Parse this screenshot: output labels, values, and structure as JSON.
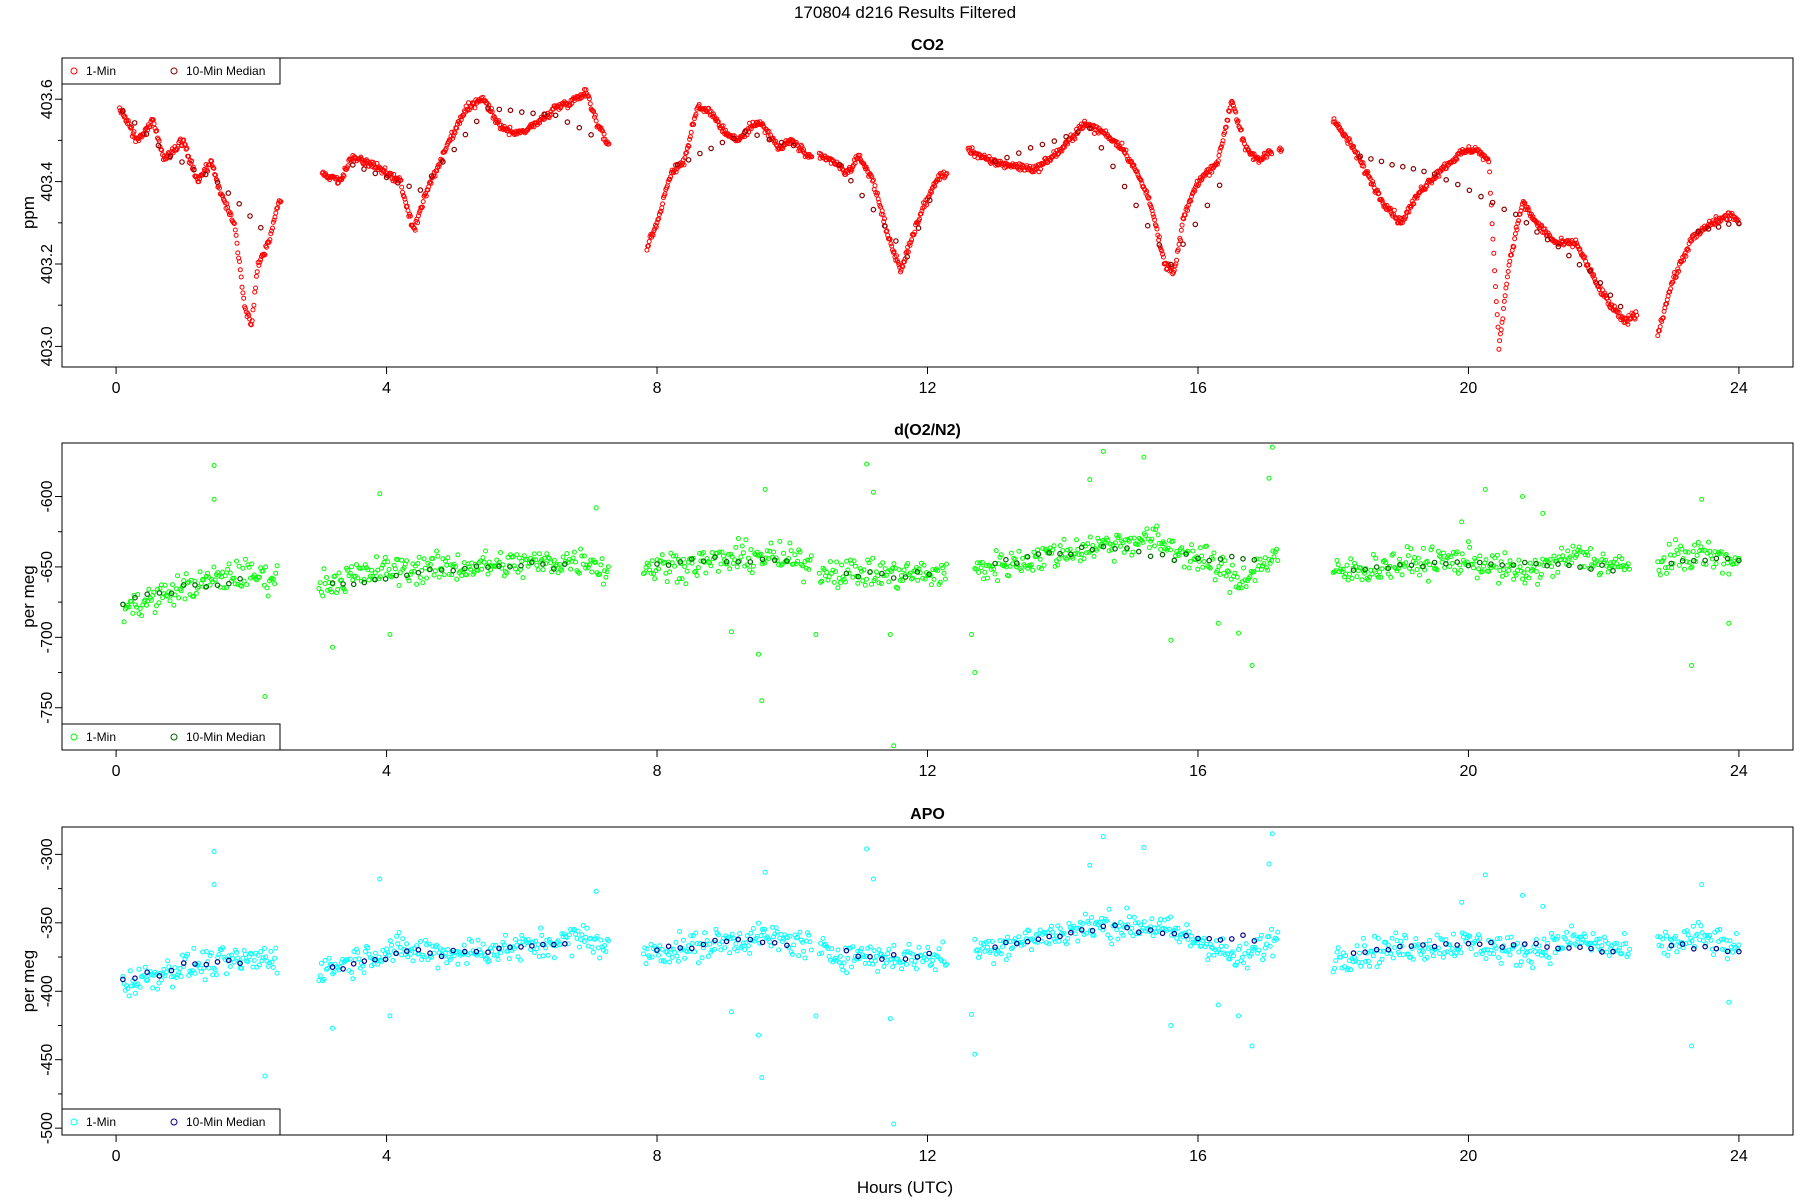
{
  "figure": {
    "title": "170804   d216   Results Filtered",
    "xlabel": "Hours (UTC)"
  },
  "colors": {
    "co2_1min": "#ff0000",
    "co2_median": "#8b0000",
    "o2_1min": "#00ff00",
    "o2_median": "#006400",
    "apo_1min": "#00ffff",
    "apo_median": "#00008b"
  },
  "chart_data": [
    {
      "type": "scatter",
      "title": "CO2",
      "xlabel": "",
      "ylabel": "ppm",
      "xlim": [
        -0.8,
        24.8
      ],
      "ylim": [
        402.95,
        403.7
      ],
      "xticks": [
        0,
        4,
        8,
        12,
        16,
        20,
        24
      ],
      "yticks": [
        403.0,
        403.2,
        403.4,
        403.6
      ],
      "ytick_labels": [
        "403.0",
        "403.2",
        "403.4",
        "403.6"
      ],
      "ytick_minor": [
        403.1,
        403.3,
        403.5
      ],
      "grid": false,
      "legend_position": "top-left",
      "legend": [
        "1-Min",
        "10-Min Median"
      ],
      "anchors_1min": [
        [
          0.05,
          403.58
        ],
        [
          0.3,
          403.5
        ],
        [
          0.55,
          403.55
        ],
        [
          0.7,
          403.45
        ],
        [
          1.0,
          403.5
        ],
        [
          1.2,
          403.4
        ],
        [
          1.4,
          403.45
        ],
        [
          1.6,
          403.35
        ],
        [
          1.75,
          403.3
        ],
        [
          1.9,
          403.1
        ],
        [
          2.0,
          403.05
        ],
        [
          2.1,
          403.2
        ],
        [
          2.25,
          403.25
        ],
        [
          2.4,
          403.35
        ],
        [
          2.45,
          403.36
        ],
        null,
        [
          3.05,
          403.42
        ],
        [
          3.3,
          403.4
        ],
        [
          3.5,
          403.46
        ],
        [
          3.8,
          403.44
        ],
        [
          4.0,
          403.42
        ],
        [
          4.2,
          403.4
        ],
        [
          4.4,
          403.28
        ],
        [
          4.6,
          403.38
        ],
        [
          4.8,
          403.45
        ],
        [
          5.0,
          403.52
        ],
        [
          5.2,
          403.58
        ],
        [
          5.45,
          403.6
        ],
        [
          5.6,
          403.55
        ],
        [
          5.8,
          403.52
        ],
        [
          6.0,
          403.52
        ],
        [
          6.3,
          403.55
        ],
        [
          6.5,
          403.58
        ],
        [
          6.8,
          403.6
        ],
        [
          6.95,
          403.62
        ],
        [
          7.1,
          403.55
        ],
        [
          7.3,
          403.48
        ],
        null,
        [
          7.85,
          403.24
        ],
        [
          8.0,
          403.3
        ],
        [
          8.2,
          403.42
        ],
        [
          8.4,
          403.45
        ],
        [
          8.6,
          403.58
        ],
        [
          8.8,
          403.57
        ],
        [
          9.0,
          403.52
        ],
        [
          9.2,
          403.5
        ],
        [
          9.5,
          403.55
        ],
        [
          9.8,
          403.48
        ],
        [
          10.0,
          403.5
        ],
        [
          10.3,
          403.45
        ],
        null,
        [
          10.4,
          403.46
        ],
        [
          10.6,
          403.45
        ],
        [
          10.8,
          403.42
        ],
        [
          11.0,
          403.46
        ],
        [
          11.2,
          403.4
        ],
        [
          11.4,
          403.28
        ],
        [
          11.6,
          403.18
        ],
        [
          11.8,
          403.28
        ],
        [
          12.0,
          403.36
        ],
        [
          12.2,
          403.42
        ],
        [
          12.3,
          403.41
        ],
        null,
        [
          12.6,
          403.48
        ],
        [
          12.9,
          403.45
        ],
        [
          13.2,
          403.44
        ],
        [
          13.6,
          403.43
        ],
        [
          14.0,
          403.48
        ],
        [
          14.3,
          403.54
        ],
        [
          14.6,
          403.52
        ],
        [
          14.9,
          403.48
        ],
        [
          15.1,
          403.42
        ],
        [
          15.3,
          403.35
        ],
        [
          15.5,
          403.2
        ],
        [
          15.65,
          403.18
        ],
        [
          15.8,
          403.32
        ],
        [
          16.0,
          403.4
        ],
        [
          16.3,
          403.45
        ],
        [
          16.5,
          403.6
        ],
        [
          16.7,
          403.48
        ],
        [
          16.9,
          403.45
        ],
        [
          17.1,
          403.48
        ],
        null,
        [
          17.2,
          403.48
        ],
        [
          17.25,
          403.48
        ],
        null,
        [
          18.0,
          403.55
        ],
        [
          18.3,
          403.48
        ],
        [
          18.5,
          403.42
        ],
        [
          18.7,
          403.36
        ],
        [
          19.0,
          403.3
        ],
        [
          19.3,
          403.38
        ],
        [
          19.6,
          403.43
        ],
        [
          19.9,
          403.47
        ],
        [
          20.1,
          403.48
        ],
        [
          20.3,
          403.45
        ],
        [
          20.45,
          403.0
        ],
        [
          20.6,
          403.2
        ],
        [
          20.8,
          403.35
        ],
        [
          21.0,
          403.3
        ],
        [
          21.3,
          403.25
        ],
        [
          21.6,
          403.25
        ],
        [
          21.9,
          403.15
        ],
        [
          22.1,
          403.1
        ],
        [
          22.3,
          403.06
        ],
        [
          22.5,
          403.08
        ],
        null,
        [
          22.8,
          403.03
        ],
        [
          23.0,
          403.15
        ],
        [
          23.3,
          403.26
        ],
        [
          23.6,
          403.3
        ],
        [
          23.9,
          403.32
        ],
        [
          24.0,
          403.3
        ]
      ],
      "anchors_median": [
        [
          0.1,
          403.57
        ],
        [
          0.8,
          403.46
        ],
        [
          1.5,
          403.4
        ],
        [
          2.3,
          403.26
        ],
        null,
        [
          3.5,
          403.44
        ],
        [
          4.5,
          403.38
        ],
        [
          5.5,
          403.58
        ],
        [
          6.5,
          403.56
        ],
        [
          7.2,
          403.5
        ],
        null,
        [
          8.3,
          403.44
        ],
        [
          9.3,
          403.52
        ],
        [
          10.2,
          403.48
        ],
        null,
        [
          10.7,
          403.44
        ],
        [
          11.7,
          403.22
        ],
        [
          12.2,
          403.42
        ],
        null,
        [
          13.0,
          403.45
        ],
        [
          14.4,
          403.53
        ],
        [
          15.6,
          403.2
        ],
        [
          16.5,
          403.44
        ],
        null,
        [
          18.4,
          403.46
        ],
        [
          19.5,
          403.42
        ],
        [
          20.7,
          403.32
        ],
        [
          21.8,
          403.18
        ],
        [
          22.4,
          403.07
        ],
        null,
        [
          23.4,
          403.28
        ],
        [
          24.0,
          403.3
        ]
      ]
    },
    {
      "type": "scatter",
      "title": "d(O2/N2)",
      "xlabel": "",
      "ylabel": "per meg",
      "xlim": [
        -0.8,
        24.8
      ],
      "ylim": [
        -780,
        -562
      ],
      "xticks": [
        0,
        4,
        8,
        12,
        16,
        20,
        24
      ],
      "yticks": [
        -750,
        -700,
        -650,
        -600
      ],
      "ytick_labels": [
        "-750",
        "-700",
        "-650",
        "-600"
      ],
      "ytick_minor": [
        -725,
        -675,
        -625
      ],
      "grid": false,
      "legend_position": "bottom-left",
      "legend": [
        "1-Min",
        "10-Min Median"
      ],
      "anchors_1min": [
        [
          0.1,
          -680
        ],
        [
          1.0,
          -665
        ],
        [
          1.8,
          -655
        ],
        [
          2.4,
          -658
        ],
        null,
        [
          3.0,
          -662
        ],
        [
          4.0,
          -652
        ],
        [
          5.0,
          -650
        ],
        [
          6.0,
          -648
        ],
        [
          7.0,
          -645
        ],
        [
          7.3,
          -655
        ],
        null,
        [
          7.8,
          -650
        ],
        [
          8.5,
          -648
        ],
        [
          9.5,
          -642
        ],
        [
          10.3,
          -648
        ],
        null,
        [
          10.4,
          -652
        ],
        [
          11.3,
          -655
        ],
        [
          12.3,
          -655
        ],
        null,
        [
          12.7,
          -652
        ],
        [
          13.5,
          -645
        ],
        [
          14.5,
          -635
        ],
        [
          15.3,
          -630
        ],
        [
          16.2,
          -648
        ],
        [
          16.6,
          -660
        ],
        [
          17.2,
          -640
        ],
        null,
        [
          18.0,
          -655
        ],
        [
          19.0,
          -648
        ],
        [
          20.0,
          -645
        ],
        [
          20.8,
          -655
        ],
        [
          21.6,
          -642
        ],
        [
          22.4,
          -652
        ],
        null,
        [
          22.8,
          -648
        ],
        [
          23.4,
          -640
        ],
        [
          24.0,
          -648
        ]
      ],
      "anchors_median": [
        [
          0.1,
          -675
        ],
        [
          1.0,
          -665
        ],
        [
          2.0,
          -658
        ],
        null,
        [
          3.2,
          -662
        ],
        [
          4.3,
          -655
        ],
        [
          5.5,
          -650
        ],
        [
          6.8,
          -648
        ],
        null,
        [
          8.0,
          -648
        ],
        [
          9.2,
          -645
        ],
        [
          10.1,
          -646
        ],
        null,
        [
          10.8,
          -655
        ],
        [
          12.2,
          -655
        ],
        null,
        [
          13.0,
          -648
        ],
        [
          14.6,
          -635
        ],
        [
          16.0,
          -645
        ],
        [
          17.0,
          -645
        ],
        null,
        [
          18.3,
          -652
        ],
        [
          19.5,
          -648
        ],
        [
          21.0,
          -648
        ],
        [
          22.3,
          -652
        ],
        null,
        [
          23.0,
          -645
        ],
        [
          24.0,
          -645
        ]
      ],
      "outliers": [
        [
          1.45,
          -578
        ],
        [
          1.45,
          -602
        ],
        [
          2.2,
          -742
        ],
        [
          3.2,
          -707
        ],
        [
          3.9,
          -598
        ],
        [
          4.05,
          -698
        ],
        [
          7.1,
          -608
        ],
        [
          9.1,
          -696
        ],
        [
          9.5,
          -712
        ],
        [
          9.55,
          -745
        ],
        [
          9.6,
          -595
        ],
        [
          10.35,
          -698
        ],
        [
          11.1,
          -577
        ],
        [
          11.2,
          -597
        ],
        [
          11.45,
          -698
        ],
        [
          11.5,
          -777
        ],
        [
          12.7,
          -725
        ],
        [
          12.65,
          -698
        ],
        [
          14.4,
          -588
        ],
        [
          14.6,
          -568
        ],
        [
          15.2,
          -572
        ],
        [
          15.6,
          -702
        ],
        [
          16.3,
          -690
        ],
        [
          16.6,
          -697
        ],
        [
          16.8,
          -720
        ],
        [
          17.05,
          -587
        ],
        [
          17.1,
          -565
        ],
        [
          19.9,
          -618
        ],
        [
          20.25,
          -595
        ],
        [
          20.8,
          -600
        ],
        [
          21.1,
          -612
        ],
        [
          23.3,
          -720
        ],
        [
          23.45,
          -602
        ],
        [
          23.85,
          -690
        ]
      ]
    },
    {
      "type": "scatter",
      "title": "APO",
      "xlabel": "Hours (UTC)",
      "ylabel": "per meg",
      "xlim": [
        -0.8,
        24.8
      ],
      "ylim": [
        -505,
        -280
      ],
      "xticks": [
        0,
        4,
        8,
        12,
        16,
        20,
        24
      ],
      "yticks": [
        -500,
        -450,
        -400,
        -350,
        -300
      ],
      "ytick_labels": [
        "-500",
        "-450",
        "-400",
        "-350",
        "-300"
      ],
      "ytick_minor": [
        -475,
        -425,
        -375,
        -325
      ],
      "grid": false,
      "legend_position": "bottom-left",
      "legend": [
        "1-Min",
        "10-Min Median"
      ],
      "anchors_1min": [
        [
          0.1,
          -395
        ],
        [
          1.0,
          -382
        ],
        [
          1.8,
          -378
        ],
        [
          2.4,
          -375
        ],
        null,
        [
          3.0,
          -385
        ],
        [
          4.0,
          -370
        ],
        [
          5.0,
          -372
        ],
        [
          6.0,
          -368
        ],
        [
          7.0,
          -360
        ],
        [
          7.3,
          -372
        ],
        null,
        [
          7.8,
          -372
        ],
        [
          8.5,
          -368
        ],
        [
          9.5,
          -360
        ],
        [
          10.3,
          -366
        ],
        null,
        [
          10.4,
          -372
        ],
        [
          11.3,
          -375
        ],
        [
          12.3,
          -375
        ],
        null,
        [
          12.7,
          -370
        ],
        [
          13.5,
          -362
        ],
        [
          14.5,
          -352
        ],
        [
          15.3,
          -352
        ],
        [
          16.2,
          -366
        ],
        [
          16.6,
          -378
        ],
        [
          17.2,
          -360
        ],
        null,
        [
          18.0,
          -375
        ],
        [
          19.0,
          -368
        ],
        [
          20.0,
          -365
        ],
        [
          20.8,
          -372
        ],
        [
          21.6,
          -362
        ],
        [
          22.4,
          -372
        ],
        null,
        [
          22.8,
          -368
        ],
        [
          23.4,
          -360
        ],
        [
          24.0,
          -370
        ]
      ],
      "anchors_median": [
        [
          0.1,
          -393
        ],
        [
          1.0,
          -382
        ],
        [
          2.0,
          -377
        ],
        null,
        [
          3.2,
          -383
        ],
        [
          4.3,
          -372
        ],
        [
          5.5,
          -370
        ],
        [
          6.8,
          -362
        ],
        null,
        [
          8.0,
          -370
        ],
        [
          9.2,
          -362
        ],
        [
          10.1,
          -366
        ],
        null,
        [
          10.8,
          -374
        ],
        [
          12.2,
          -375
        ],
        null,
        [
          13.0,
          -368
        ],
        [
          14.6,
          -352
        ],
        [
          16.0,
          -362
        ],
        [
          17.0,
          -362
        ],
        null,
        [
          18.3,
          -372
        ],
        [
          19.5,
          -366
        ],
        [
          21.0,
          -366
        ],
        [
          22.3,
          -372
        ],
        null,
        [
          23.0,
          -365
        ],
        [
          24.0,
          -372
        ]
      ],
      "outliers": [
        [
          1.45,
          -298
        ],
        [
          1.45,
          -322
        ],
        [
          2.2,
          -462
        ],
        [
          3.2,
          -427
        ],
        [
          3.9,
          -318
        ],
        [
          4.05,
          -418
        ],
        [
          7.1,
          -327
        ],
        [
          9.1,
          -415
        ],
        [
          9.5,
          -432
        ],
        [
          9.55,
          -463
        ],
        [
          9.6,
          -313
        ],
        [
          10.35,
          -418
        ],
        [
          11.1,
          -296
        ],
        [
          11.2,
          -318
        ],
        [
          11.45,
          -420
        ],
        [
          11.5,
          -497
        ],
        [
          12.7,
          -446
        ],
        [
          12.65,
          -417
        ],
        [
          14.4,
          -308
        ],
        [
          14.6,
          -287
        ],
        [
          15.2,
          -295
        ],
        [
          15.6,
          -425
        ],
        [
          16.3,
          -410
        ],
        [
          16.6,
          -418
        ],
        [
          16.8,
          -440
        ],
        [
          17.05,
          -307
        ],
        [
          17.1,
          -285
        ],
        [
          19.9,
          -335
        ],
        [
          20.25,
          -315
        ],
        [
          20.8,
          -330
        ],
        [
          21.1,
          -338
        ],
        [
          23.3,
          -440
        ],
        [
          23.45,
          -322
        ],
        [
          23.85,
          -408
        ]
      ]
    }
  ]
}
